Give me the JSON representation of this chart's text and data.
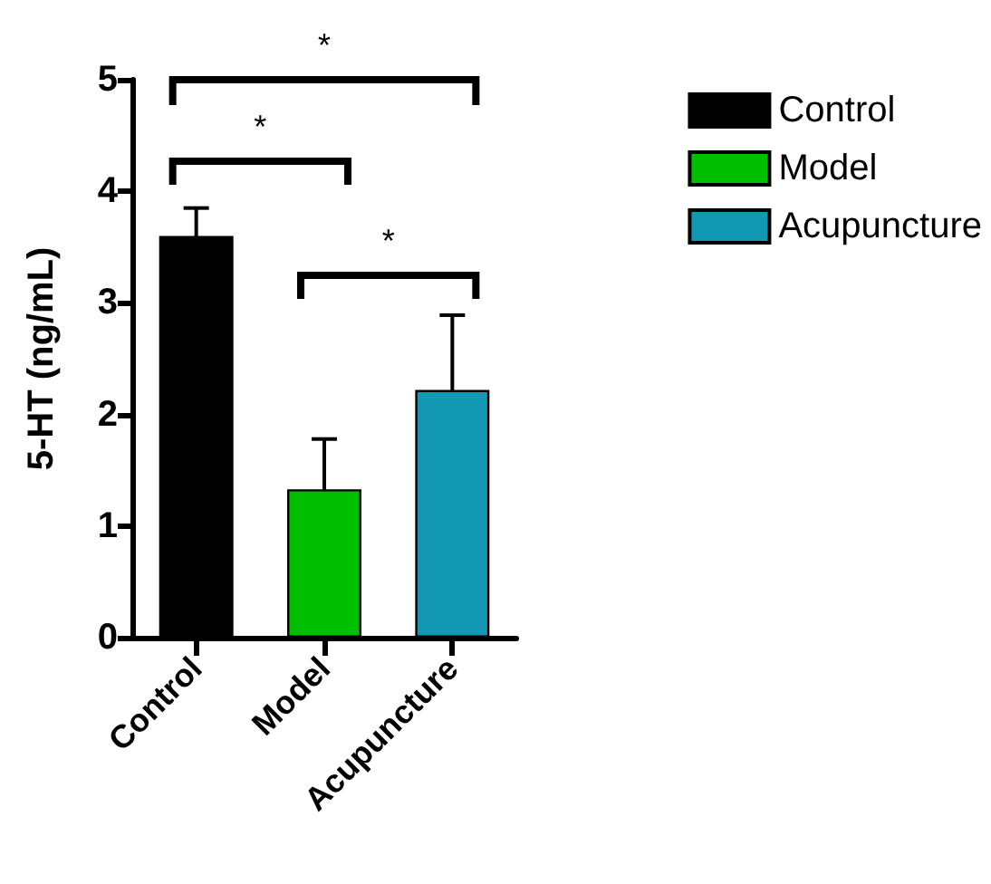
{
  "chart_data": {
    "type": "bar",
    "ylabel": "5-HT (ng/mL)",
    "categories": [
      "Control",
      "Model",
      "Acupuncture"
    ],
    "stacked": true,
    "series": [
      {
        "name": "Control",
        "color": "#000000",
        "values": [
          3.6,
          null,
          null
        ],
        "errors": [
          0.25,
          null,
          null
        ]
      },
      {
        "name": "Model",
        "color": "#00bf00",
        "values": [
          null,
          1.33,
          null
        ],
        "errors": [
          null,
          0.45,
          null
        ]
      },
      {
        "name": "Acupuncture",
        "color": "#1398b4",
        "values": [
          null,
          null,
          2.22
        ],
        "errors": [
          null,
          null,
          0.67
        ]
      }
    ],
    "ylim": [
      0,
      5
    ],
    "yticks": [
      0,
      1,
      2,
      3,
      4,
      5
    ],
    "grid": false,
    "legend": "top right",
    "annotations": [
      "*",
      "*",
      "*"
    ]
  }
}
